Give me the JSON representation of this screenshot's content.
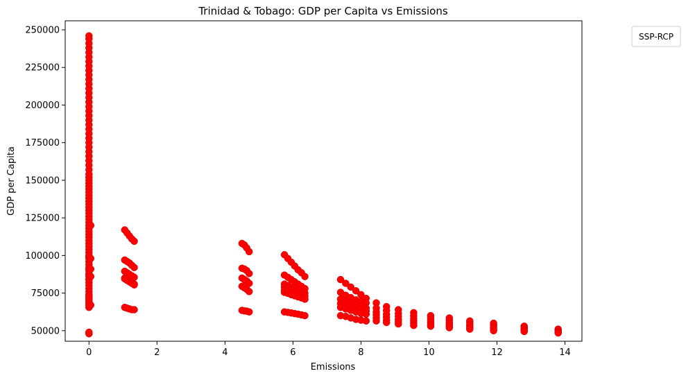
{
  "chart_data": {
    "type": "scatter",
    "title": "Trinidad & Tobago: GDP per Capita vs Emissions",
    "xlabel": "Emissions",
    "ylabel": "GDP per Capita",
    "xlim": [
      -0.7,
      14.5
    ],
    "ylim": [
      43000,
      256000
    ],
    "xticks": [
      0,
      2,
      4,
      6,
      8,
      10,
      12,
      14
    ],
    "yticks": [
      50000,
      75000,
      100000,
      125000,
      150000,
      175000,
      200000,
      225000,
      250000
    ],
    "grid": false,
    "legend": {
      "title": "SSP-RCP",
      "placement": "upper-right-outside"
    },
    "marker_color": "#ff0000",
    "edge_color": "#cc0000",
    "series": [
      {
        "x": [
          0,
          0,
          0,
          0,
          0,
          0,
          0,
          0,
          0,
          0,
          0,
          0,
          0,
          0,
          0,
          0,
          0,
          0,
          0,
          0,
          0,
          0,
          0,
          0,
          0,
          0,
          0,
          0,
          0,
          0,
          0,
          0,
          0,
          0,
          0,
          0,
          0,
          0,
          0,
          0,
          0,
          0,
          0,
          0,
          0,
          0,
          0,
          0,
          0,
          0,
          0,
          0,
          0,
          0,
          0,
          0,
          0,
          0,
          0,
          0,
          0,
          0,
          0,
          0,
          0,
          0,
          0,
          0,
          0,
          0,
          0,
          0,
          0,
          0,
          0,
          0,
          0,
          0,
          0,
          0,
          0,
          0,
          0,
          0,
          0,
          0,
          0.05,
          0.05,
          0.05,
          0.05,
          0.05,
          1.05,
          1.12,
          1.19,
          1.26,
          1.33,
          1.05,
          1.12,
          1.19,
          1.26,
          1.33,
          1.05,
          1.12,
          1.19,
          1.26,
          1.33,
          1.05,
          1.12,
          1.19,
          1.26,
          1.33,
          1.05,
          1.12,
          1.19,
          1.26,
          1.33,
          1.05,
          1.12,
          1.19,
          1.26,
          1.33,
          4.5,
          4.57,
          4.64,
          4.71,
          4.5,
          4.57,
          4.64,
          4.71,
          4.5,
          4.57,
          4.64,
          4.71,
          4.5,
          4.57,
          4.64,
          4.71,
          4.5,
          4.57,
          4.64,
          4.71,
          5.75,
          5.85,
          5.95,
          6.05,
          6.15,
          6.25,
          6.35,
          5.75,
          5.85,
          5.95,
          6.05,
          6.15,
          6.25,
          6.35,
          5.75,
          5.85,
          5.95,
          6.05,
          6.15,
          6.25,
          6.35,
          5.75,
          5.85,
          5.95,
          6.05,
          6.15,
          6.25,
          6.35,
          5.75,
          5.85,
          5.95,
          6.05,
          6.15,
          6.25,
          6.35,
          5.75,
          5.85,
          5.95,
          6.05,
          6.15,
          6.25,
          6.35,
          5.75,
          5.85,
          5.95,
          6.05,
          6.15,
          6.25,
          6.35,
          7.4,
          7.55,
          7.7,
          7.85,
          8.0,
          8.15,
          7.4,
          7.55,
          7.7,
          7.85,
          8.0,
          8.15,
          7.4,
          7.55,
          7.7,
          7.85,
          8.0,
          8.15,
          7.4,
          7.55,
          7.7,
          7.85,
          8.0,
          8.15,
          7.4,
          7.55,
          7.7,
          7.85,
          8.0,
          8.15,
          7.4,
          7.55,
          7.7,
          7.85,
          8.0,
          8.15,
          8.45,
          8.45,
          8.45,
          8.45,
          8.45,
          8.45,
          8.75,
          8.75,
          8.75,
          8.75,
          8.75,
          8.75,
          9.1,
          9.1,
          9.1,
          9.1,
          9.1,
          9.1,
          9.55,
          9.55,
          9.55,
          9.55,
          9.55,
          9.55,
          10.05,
          10.05,
          10.05,
          10.05,
          10.05,
          10.05,
          10.6,
          10.6,
          10.6,
          10.6,
          10.6,
          10.6,
          11.2,
          11.2,
          11.2,
          11.2,
          11.2,
          11.2,
          11.9,
          11.9,
          11.9,
          11.9,
          11.9,
          11.9,
          12.8,
          12.8,
          12.8,
          12.8,
          12.8,
          12.8,
          13.8,
          13.8,
          13.8,
          13.8,
          13.8,
          13.8
        ],
        "y": [
          48000,
          49000,
          65500,
          67000,
          68500,
          70000,
          72000,
          74000,
          76000,
          78000,
          80000,
          82000,
          84000,
          86000,
          88000,
          90000,
          92000,
          94000,
          96000,
          98000,
          100000,
          102000,
          104000,
          106000,
          108000,
          110000,
          112000,
          114000,
          116000,
          118000,
          120000,
          122000,
          124000,
          126000,
          128000,
          130000,
          132000,
          134000,
          136000,
          138000,
          140000,
          142000,
          144000,
          146000,
          148000,
          150000,
          152000,
          154000,
          157000,
          160000,
          163000,
          166000,
          169000,
          172000,
          175000,
          178000,
          181000,
          184000,
          187000,
          190000,
          193000,
          196000,
          199000,
          202000,
          205000,
          208000,
          211000,
          214000,
          217000,
          220000,
          223000,
          226000,
          229000,
          232000,
          235000,
          238000,
          241000,
          244000,
          246000,
          91000,
          99000,
          87000,
          84000,
          73000,
          71000,
          69000,
          120000,
          98000,
          91000,
          86000,
          67000,
          117000,
          115000,
          113000,
          111000,
          109500,
          97000,
          96000,
          95000,
          93500,
          92000,
          89500,
          88500,
          87500,
          86500,
          85500,
          85000,
          84000,
          83000,
          82000,
          81000,
          65500,
          65000,
          64500,
          64000,
          64000,
          84500,
          83500,
          82500,
          81500,
          80500,
          108000,
          107000,
          105000,
          102500,
          91500,
          91000,
          90000,
          88000,
          85000,
          84000,
          83000,
          81500,
          79500,
          78500,
          77500,
          76000,
          63500,
          63200,
          63000,
          62500,
          100500,
          98000,
          95500,
          93000,
          90500,
          88500,
          86000,
          87000,
          85500,
          84000,
          82500,
          81000,
          79500,
          78000,
          81000,
          80000,
          79000,
          78000,
          77000,
          76000,
          75000,
          75500,
          74800,
          74000,
          73200,
          72500,
          71800,
          71000,
          62500,
          62200,
          61800,
          61400,
          61000,
          60500,
          60000,
          79000,
          78000,
          77000,
          76000,
          75000,
          74000,
          73000,
          77000,
          76000,
          75000,
          74000,
          73000,
          72000,
          71000,
          84000,
          81500,
          79000,
          76500,
          74000,
          71500,
          75500,
          73500,
          72000,
          70500,
          69500,
          68500,
          71000,
          69500,
          68500,
          67000,
          66000,
          65000,
          68000,
          67000,
          66000,
          65000,
          64000,
          63000,
          65500,
          64500,
          63500,
          62500,
          61500,
          61000,
          60000,
          59500,
          58500,
          57500,
          57000,
          56500,
          68500,
          65000,
          62500,
          60500,
          58500,
          56500,
          66000,
          63500,
          61000,
          59000,
          57000,
          55500,
          64000,
          61500,
          59500,
          57500,
          56000,
          54500,
          62000,
          60000,
          58000,
          56500,
          55000,
          53500,
          60000,
          58500,
          57000,
          55500,
          54000,
          53000,
          58500,
          57000,
          55500,
          54000,
          53000,
          52000,
          56500,
          55500,
          54000,
          53000,
          52000,
          51000,
          55000,
          54000,
          53000,
          52000,
          51000,
          50000,
          53000,
          52000,
          51500,
          51000,
          50000,
          49500,
          51000,
          50500,
          50000,
          49500,
          49000,
          48500
        ]
      }
    ]
  }
}
